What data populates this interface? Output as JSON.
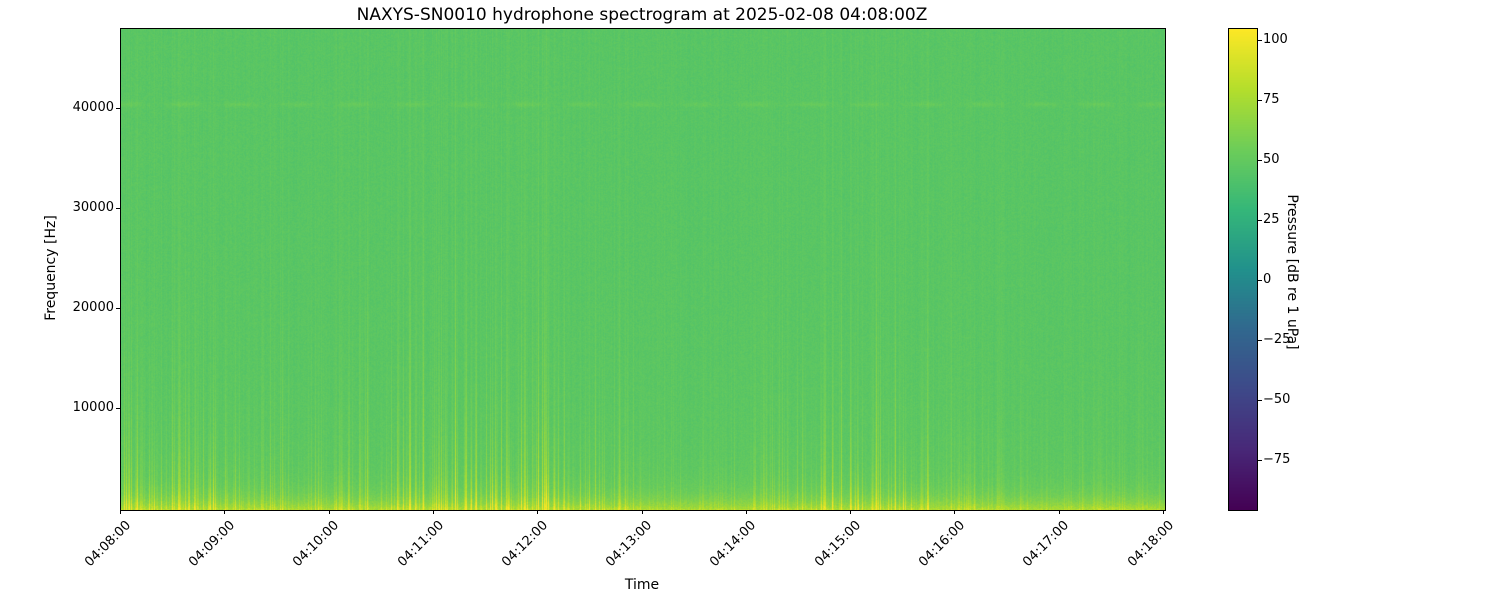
{
  "chart_data": {
    "type": "heatmap",
    "title": "NAXYS-SN0010 hydrophone spectrogram at 2025-02-08 04:08:00Z",
    "xlabel": "Time",
    "ylabel": "Frequency [Hz]",
    "colorbar_label": "Pressure [dB re 1 uPa]",
    "x_tick_labels": [
      "04:08:00",
      "04:09:00",
      "04:10:00",
      "04:11:00",
      "04:12:00",
      "04:13:00",
      "04:14:00",
      "04:15:00",
      "04:16:00",
      "04:17:00",
      "04:18:00"
    ],
    "y_tick_values": [
      10000,
      20000,
      30000,
      40000
    ],
    "y_tick_labels": [
      "10000",
      "20000",
      "30000",
      "40000"
    ],
    "ylim": [
      0,
      48000
    ],
    "xlim_seconds": [
      0,
      600
    ],
    "grid": false,
    "legend": "none",
    "colormap": "viridis",
    "colormap_stops": [
      "#440154",
      "#482878",
      "#3e4989",
      "#31688e",
      "#21918c",
      "#35b779",
      "#6dcd59",
      "#b4de2c",
      "#fde725"
    ],
    "clim": [
      -95,
      105
    ],
    "colorbar_ticks": [
      100,
      75,
      50,
      25,
      0,
      -25,
      -50,
      -75
    ],
    "colorbar_tick_labels": [
      "100",
      "75",
      "50",
      "25",
      "0",
      "−25",
      "−50",
      "−75"
    ],
    "content": {
      "background_level_db": 46,
      "low_frequency_band": {
        "below_hz": 2000,
        "boost_db": 26,
        "decay_hz": 1100
      },
      "broadband_transients": {
        "description": "dense narrow vertical broadband clicks, strongest below ~12 kHz, reaching ~75-105 dB near the bottom",
        "column_density": 0.58,
        "max_boost_db": 70,
        "freq_decay_hz_range": [
          2500,
          11500
        ]
      },
      "tonal_line": {
        "frequency_hz": 40500,
        "boost_db": 5,
        "description": "faint wavy horizontal tonal line"
      }
    },
    "render": {
      "seed": 20250208,
      "pixel_noise_db": 6
    }
  }
}
